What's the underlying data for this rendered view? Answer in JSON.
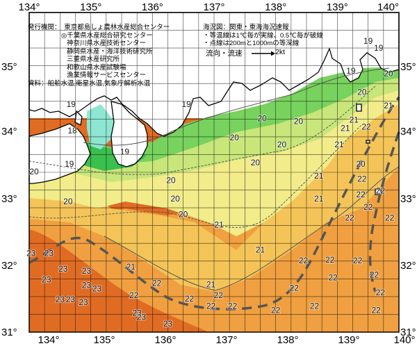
{
  "map": {
    "lon_ticks": [
      "134°",
      "135°",
      "136°",
      "137°",
      "138°",
      "139°",
      "140°"
    ],
    "lat_ticks": [
      "35°",
      "34°",
      "33°",
      "32°",
      "31°"
    ],
    "lon_range": [
      134,
      140
    ],
    "lat_range": [
      31,
      35.5
    ],
    "grid_step_deg": 0.25,
    "colors": {
      "land": "#ffffff",
      "t18": "#8ee6d2",
      "t19": "#3bbf4e",
      "t19b": "#78d25e",
      "t20": "#c8e67a",
      "t20b": "#f2ec8a",
      "t21": "#f4c458",
      "t22": "#f0a040",
      "t22b": "#ec8a30",
      "t23": "#e06c24",
      "isotherm": "#555555",
      "current": "#555555",
      "grid": "#000000"
    }
  },
  "issuer": {
    "lines": [
      "発行機関：　東京都島しょ農林水産総合センター",
      "◎千葉県水産総合研究センター",
      "神奈川県水産技術センター",
      "静岡県水産・海洋技術研究所",
      "三重県水産研究所",
      "和歌山県水産試験場",
      "漁業情報サービスセンター",
      "資料：船舶水温,衛星水温,気象庁解析水温"
    ]
  },
  "legend": {
    "lines": [
      "海況図：関東・東海海況速報",
      "・等温線は1℃毎が実線、0.5℃毎が破線",
      "・点線は200mと1000mの等深線"
    ],
    "flow_label": "流向・流速",
    "flow_unit": "2kt"
  },
  "isotherm_labels": [
    {
      "t": "19",
      "lon": 139.5,
      "lat": 35.06
    },
    {
      "t": "19",
      "lon": 139.67,
      "lat": 34.96
    },
    {
      "t": "19",
      "lon": 139.22,
      "lat": 34.64
    },
    {
      "t": "20",
      "lon": 139.83,
      "lat": 34.6
    },
    {
      "t": "20",
      "lon": 139.4,
      "lat": 34.34
    },
    {
      "t": "19",
      "lon": 136.55,
      "lat": 34.17
    },
    {
      "t": "19",
      "lon": 134.68,
      "lat": 34.17
    },
    {
      "t": "18",
      "lon": 134.7,
      "lat": 33.8
    },
    {
      "t": "19",
      "lon": 135.55,
      "lat": 33.5
    },
    {
      "t": "19",
      "lon": 134.65,
      "lat": 33.33
    },
    {
      "t": "20",
      "lon": 134.08,
      "lat": 33.22
    },
    {
      "t": "20",
      "lon": 134.63,
      "lat": 32.8
    },
    {
      "t": "20",
      "lon": 136.3,
      "lat": 33.1
    },
    {
      "t": "20",
      "lon": 136.37,
      "lat": 32.84
    },
    {
      "t": "20",
      "lon": 136.5,
      "lat": 32.62
    },
    {
      "t": "20",
      "lon": 137.33,
      "lat": 33.7
    },
    {
      "t": "20",
      "lon": 137.67,
      "lat": 33.35
    },
    {
      "t": "20",
      "lon": 137.78,
      "lat": 33.97
    },
    {
      "t": "20",
      "lon": 138.1,
      "lat": 33.6
    },
    {
      "t": "20",
      "lon": 138.37,
      "lat": 33.93
    },
    {
      "t": "20",
      "lon": 139.38,
      "lat": 33.33
    },
    {
      "t": "21",
      "lon": 137.08,
      "lat": 32.47
    },
    {
      "t": "21",
      "lon": 137.75,
      "lat": 32.12
    },
    {
      "t": "21",
      "lon": 135.65,
      "lat": 31.88
    },
    {
      "t": "21",
      "lon": 136.95,
      "lat": 31.63
    },
    {
      "t": "21",
      "lon": 138.7,
      "lat": 33.16
    },
    {
      "t": "21",
      "lon": 138.7,
      "lat": 32.84
    },
    {
      "t": "21",
      "lon": 139.03,
      "lat": 33.6
    },
    {
      "t": "21",
      "lon": 139.13,
      "lat": 33.83
    },
    {
      "t": "21",
      "lon": 139.27,
      "lat": 33.95
    },
    {
      "t": "21",
      "lon": 139.83,
      "lat": 34.15
    },
    {
      "t": "22",
      "lon": 139.47,
      "lat": 33.85
    },
    {
      "t": "22",
      "lon": 139.4,
      "lat": 33.12
    },
    {
      "t": "22",
      "lon": 139.7,
      "lat": 32.95
    },
    {
      "t": "22",
      "lon": 139.38,
      "lat": 32.9
    },
    {
      "t": "22",
      "lon": 139.2,
      "lat": 32.57
    },
    {
      "t": "22",
      "lon": 139.5,
      "lat": 32.72
    },
    {
      "t": "22",
      "lon": 139.85,
      "lat": 32.57
    },
    {
      "t": "22",
      "lon": 138.45,
      "lat": 31.97
    },
    {
      "t": "22",
      "lon": 138.88,
      "lat": 31.98
    },
    {
      "t": "22",
      "lon": 138.93,
      "lat": 31.73
    },
    {
      "t": "22",
      "lon": 139.33,
      "lat": 31.97
    },
    {
      "t": "22",
      "lon": 139.6,
      "lat": 31.77
    },
    {
      "t": "22",
      "lon": 139.7,
      "lat": 31.52
    },
    {
      "t": "22",
      "lon": 139.63,
      "lat": 31.27
    },
    {
      "t": "22",
      "lon": 138.63,
      "lat": 31.33
    },
    {
      "t": "22",
      "lon": 138.0,
      "lat": 31.27
    },
    {
      "t": "22",
      "lon": 137.3,
      "lat": 31.33
    },
    {
      "t": "22",
      "lon": 137.07,
      "lat": 31.48
    },
    {
      "t": "22",
      "lon": 136.6,
      "lat": 31.43
    },
    {
      "t": "22",
      "lon": 136.07,
      "lat": 31.65
    },
    {
      "t": "22",
      "lon": 135.7,
      "lat": 31.48
    },
    {
      "t": "22",
      "lon": 136.95,
      "lat": 31.33
    },
    {
      "t": "22",
      "lon": 138.3,
      "lat": 31.58
    },
    {
      "t": "23",
      "lon": 134.03,
      "lat": 32.07
    },
    {
      "t": "23",
      "lon": 134.32,
      "lat": 32.07
    },
    {
      "t": "23",
      "lon": 134.55,
      "lat": 31.85
    },
    {
      "t": "23",
      "lon": 134.28,
      "lat": 31.7
    },
    {
      "t": "23",
      "lon": 134.93,
      "lat": 31.82
    },
    {
      "t": "23",
      "lon": 135.1,
      "lat": 31.57
    },
    {
      "t": "23",
      "lon": 134.5,
      "lat": 31.42
    },
    {
      "t": "23",
      "lon": 134.67,
      "lat": 31.42
    },
    {
      "t": "23",
      "lon": 134.88,
      "lat": 31.38
    },
    {
      "t": "23",
      "lon": 134.93,
      "lat": 31.62
    },
    {
      "t": "23",
      "lon": 135.75,
      "lat": 31.23
    },
    {
      "t": "23",
      "lon": 135.82,
      "lat": 31.17
    },
    {
      "t": "23",
      "lon": 136.25,
      "lat": 31.08
    }
  ]
}
